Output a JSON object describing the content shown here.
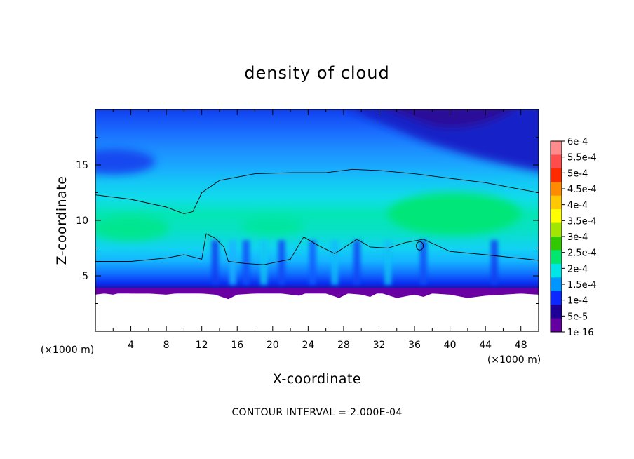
{
  "chart_data": {
    "type": "heatmap",
    "title": "density of cloud",
    "xlabel": "X-coordinate",
    "ylabel": "Z-coordinate",
    "x_unit_label": "(×1000 m)",
    "xlim": [
      0,
      50
    ],
    "ylim": [
      0,
      20
    ],
    "x_ticks": [
      "4",
      "8",
      "12",
      "16",
      "20",
      "24",
      "28",
      "32",
      "36",
      "40",
      "44",
      "48"
    ],
    "y_ticks": [
      "5",
      "10",
      "15"
    ],
    "colorbar": {
      "labels": [
        "6e-4",
        "5.5e-4",
        "5e-4",
        "4.5e-4",
        "4e-4",
        "3.5e-4",
        "3e-4",
        "2.5e-4",
        "2e-4",
        "1.5e-4",
        "1e-4",
        "5e-5",
        "1e-16"
      ],
      "colors": [
        "#ff8c8c",
        "#ff4d4d",
        "#ff2a00",
        "#ff8c00",
        "#ffc800",
        "#ffff00",
        "#a0e600",
        "#32c800",
        "#00e66e",
        "#00e6e6",
        "#0096ff",
        "#0a28ff",
        "#1e0096",
        "#6400a0"
      ]
    },
    "contour_interval_text": "CONTOUR INTERVAL = 2.000E-04",
    "contour_levels": [
      0.0002
    ],
    "upper_contour_2e-4": {
      "x": [
        0,
        4,
        8,
        10,
        11,
        12,
        14,
        18,
        22,
        26,
        29,
        32,
        36,
        40,
        44,
        48,
        50
      ],
      "z": [
        12.3,
        11.9,
        11.2,
        10.6,
        10.8,
        12.5,
        13.6,
        14.2,
        14.3,
        14.3,
        14.6,
        14.5,
        14.2,
        13.8,
        13.4,
        12.8,
        12.5
      ]
    },
    "lower_contour_2e-4": {
      "x": [
        0,
        4,
        8,
        10,
        12,
        12.5,
        13.5,
        14.5,
        15,
        17,
        19,
        22,
        23.5,
        25,
        27,
        29.5,
        31,
        33,
        35,
        37,
        40,
        44,
        50
      ],
      "z": [
        6.3,
        6.3,
        6.6,
        6.9,
        6.5,
        8.8,
        8.4,
        7.6,
        6.3,
        6.1,
        6.0,
        6.5,
        8.5,
        7.8,
        7.0,
        8.3,
        7.6,
        7.5,
        8.0,
        8.3,
        7.2,
        6.9,
        6.4
      ]
    },
    "cloud_base_z": 3.6,
    "cloud_region_max_c": "2.7e-4 near x=40, z=10.5"
  }
}
